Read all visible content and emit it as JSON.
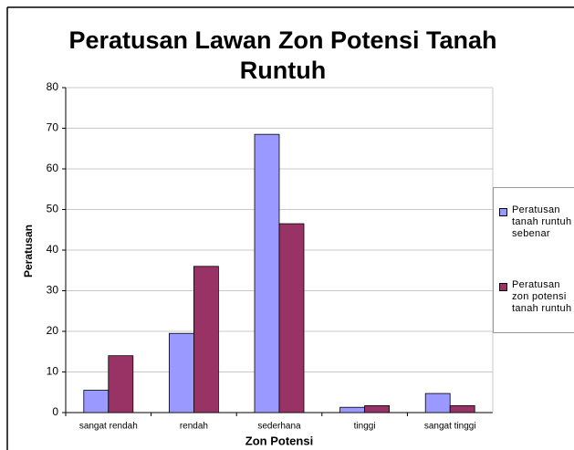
{
  "chart_data": {
    "type": "bar",
    "title": "Peratusan Lawan Zon Potensi Tanah Runtuh",
    "x_label": "Zon Potensi",
    "y_label": "Peratusan",
    "categories": [
      "sangat rendah",
      "rendah",
      "sederhana",
      "tinggi",
      "sangat tinggi"
    ],
    "series": [
      {
        "name": "Peratusan tanah runtuh sebenar",
        "color": "#9999ff",
        "values": [
          5.5,
          19.5,
          68.5,
          1.3,
          4.7
        ]
      },
      {
        "name": "Peratusan zon potensi tanah runtuh",
        "color": "#993366",
        "values": [
          14,
          36,
          46.5,
          1.7,
          1.7
        ]
      }
    ],
    "ylim": [
      0,
      80
    ],
    "yticks": [
      0,
      10,
      20,
      30,
      40,
      50,
      60,
      70,
      80
    ],
    "grid": true,
    "legend": "right"
  }
}
